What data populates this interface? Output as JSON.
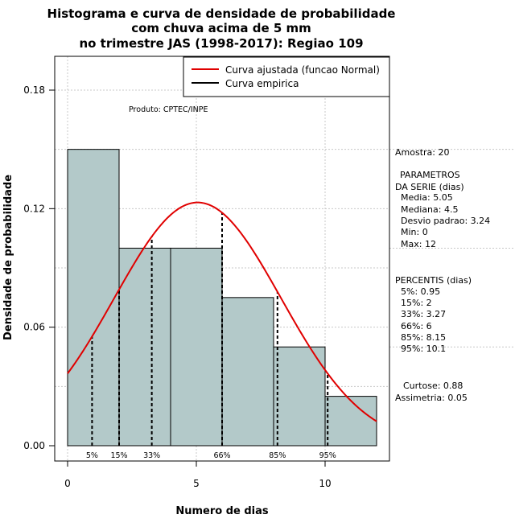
{
  "chart_data": {
    "type": "histogram",
    "title_lines": [
      "Histograma e curva de densidade de probabilidade",
      "com chuva acima de 5 mm",
      "no trimestre JAS (1998-2017): Regiao 109"
    ],
    "xlabel": "Numero de dias",
    "ylabel": "Densidade de probabilidade",
    "xlim": [
      -0.5,
      12.5
    ],
    "ylim": [
      0.0,
      0.2
    ],
    "x_ticks": [
      0,
      5,
      10
    ],
    "x_tick_labels": [
      "0",
      "5",
      "10"
    ],
    "y_ticks": [
      0.0,
      0.06,
      0.12,
      0.18
    ],
    "y_tick_labels": [
      "0.00",
      "0.06",
      "0.12",
      "0.18"
    ],
    "grid": true,
    "bins": [
      {
        "x0": 0,
        "x1": 2,
        "density": 0.15
      },
      {
        "x0": 2,
        "x1": 4,
        "density": 0.1
      },
      {
        "x0": 4,
        "x1": 6,
        "density": 0.1
      },
      {
        "x0": 6,
        "x1": 8,
        "density": 0.075
      },
      {
        "x0": 8,
        "x1": 10,
        "density": 0.05
      },
      {
        "x0": 10,
        "x1": 12,
        "density": 0.025
      }
    ],
    "normal_fit": {
      "mean": 5.05,
      "sd": 3.24,
      "x_from": 0,
      "x_to": 12
    },
    "percentile_lines": [
      {
        "label": "5%",
        "x": 0.95
      },
      {
        "label": "15%",
        "x": 2
      },
      {
        "label": "33%",
        "x": 3.27
      },
      {
        "label": "66%",
        "x": 6
      },
      {
        "label": "85%",
        "x": 8.15
      },
      {
        "label": "95%",
        "x": 10.1
      }
    ],
    "legend": {
      "position": "top-right",
      "entries": [
        {
          "label": "Curva ajustada (funcao Normal)",
          "color": "#e00000"
        },
        {
          "label": "Curva empirica",
          "color": "#000000"
        }
      ]
    },
    "annotation": "Produto: CPTEC/INPE",
    "colors": {
      "bar_fill": "#b3c9c9",
      "curve": "#e00000"
    }
  },
  "side_panel": {
    "amostra": "Amostra: 20",
    "params_title_1": "PARAMETROS",
    "params_title_2": "DA SERIE (dias)",
    "params": [
      "Media: 5.05",
      "Mediana: 4.5",
      "Desvio padrao: 3.24",
      "Min: 0",
      "Max: 12"
    ],
    "percentis_title": "PERCENTIS (dias)",
    "percentis": [
      "5%: 0.95",
      "15%: 2",
      "33%: 3.27",
      "66%: 6",
      "85%: 8.15",
      "95%: 10.1"
    ],
    "curtose": "Curtose: 0.88",
    "assimetria": "Assimetria: 0.05"
  }
}
